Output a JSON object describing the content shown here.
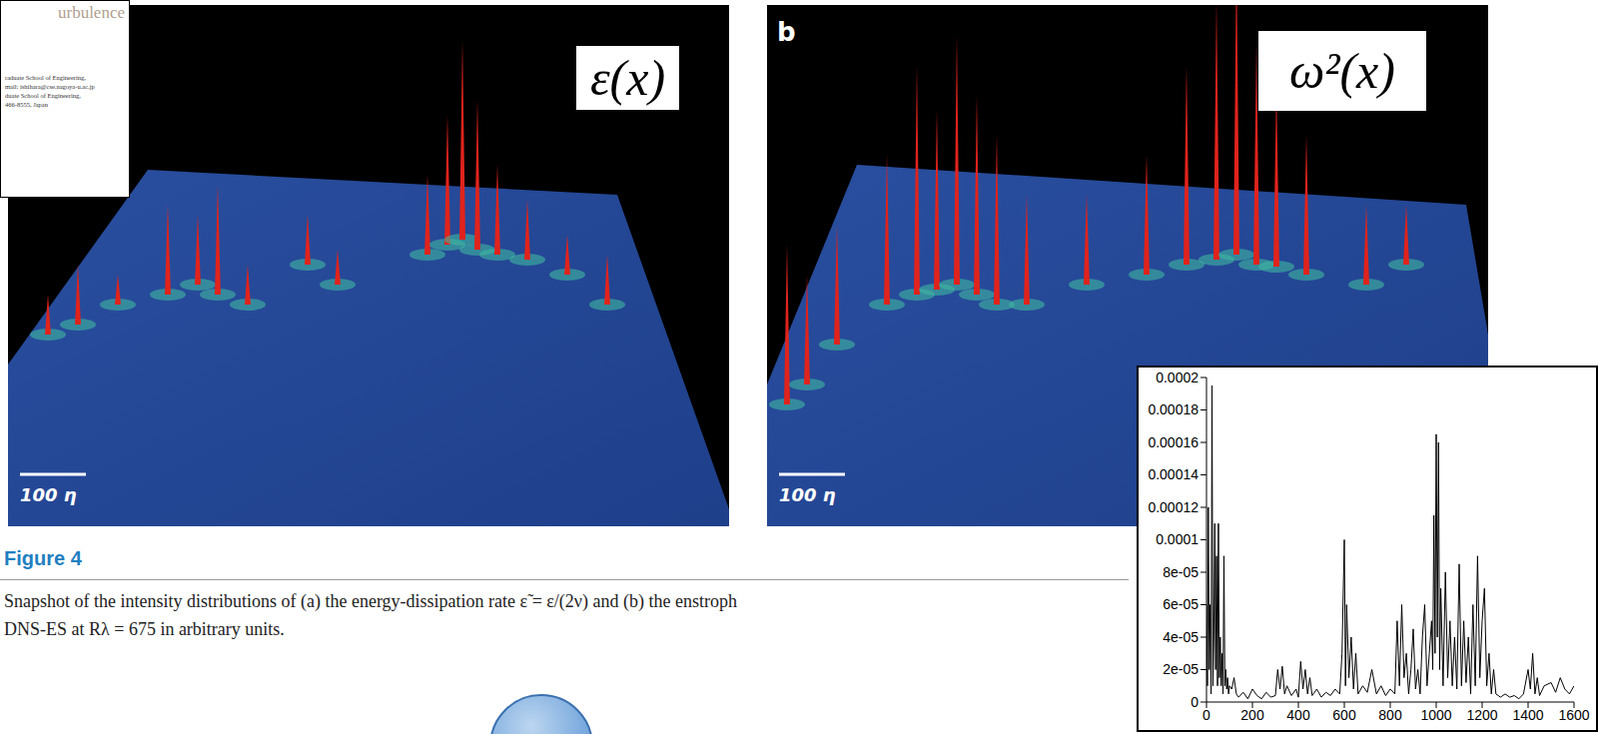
{
  "paper_header": {
    "lines": [
      "urbulence",
      "raduate School of Engineering,",
      "mail: ishihara@cse.nagoya-u.ac.jp",
      "duate School of Engineering,",
      "466-8555, Japan"
    ]
  },
  "figure": {
    "panels": [
      {
        "label": "ε(x)",
        "scale_bar": "100 η"
      },
      {
        "letter": "b",
        "label": "ω²(x)",
        "scale_bar": "100 η"
      }
    ],
    "caption_title": "Figure 4",
    "caption": [
      "Snapshot of the intensity distributions of (a) the energy-dissipation rate ε̃ = ε/(2ν) and (b) the enstroph",
      "DNS-ES at Rλ = 675 in arbitrary units."
    ]
  },
  "chart_data": {
    "type": "line",
    "color": "#000000",
    "grid": false,
    "xlim": [
      0,
      1600
    ],
    "xticks": [
      0,
      200,
      400,
      600,
      800,
      1000,
      1200,
      1400,
      1600
    ],
    "ylim": [
      0,
      0.0002
    ],
    "yticks": [
      0,
      {
        "value": 2e-05,
        "label": "2e-05"
      },
      {
        "value": 4e-05,
        "label": "4e-05"
      },
      {
        "value": 6e-05,
        "label": "6e-05"
      },
      {
        "value": 8e-05,
        "label": "8e-05"
      },
      0.0001,
      0.00012,
      0.00014,
      0.00016,
      0.00018,
      0.0002
    ],
    "x": [
      0,
      4,
      8,
      12,
      16,
      20,
      24,
      28,
      32,
      36,
      40,
      44,
      48,
      52,
      56,
      60,
      64,
      68,
      72,
      76,
      80,
      84,
      88,
      92,
      96,
      100,
      110,
      120,
      130,
      140,
      160,
      180,
      200,
      220,
      240,
      260,
      280,
      300,
      310,
      320,
      330,
      340,
      350,
      370,
      390,
      400,
      410,
      420,
      430,
      440,
      450,
      460,
      480,
      500,
      520,
      540,
      560,
      580,
      590,
      600,
      605,
      610,
      620,
      630,
      640,
      650,
      660,
      680,
      700,
      720,
      740,
      760,
      780,
      800,
      820,
      830,
      840,
      850,
      860,
      870,
      880,
      890,
      900,
      910,
      920,
      930,
      940,
      950,
      960,
      970,
      980,
      985,
      990,
      995,
      1000,
      1005,
      1010,
      1015,
      1020,
      1030,
      1040,
      1050,
      1060,
      1070,
      1080,
      1090,
      1100,
      1110,
      1120,
      1130,
      1140,
      1150,
      1160,
      1170,
      1180,
      1190,
      1200,
      1210,
      1220,
      1230,
      1240,
      1250,
      1260,
      1280,
      1300,
      1320,
      1340,
      1360,
      1380,
      1400,
      1410,
      1420,
      1430,
      1440,
      1450,
      1470,
      1500,
      1520,
      1540,
      1560,
      1580,
      1600
    ],
    "values": [
      6e-05,
      1e-05,
      0.00012,
      2e-05,
      6e-05,
      5e-06,
      0.000195,
      1e-05,
      4e-05,
      0.00011,
      2e-05,
      9e-05,
      1e-05,
      0.00011,
      1.5e-05,
      4e-05,
      1e-05,
      3e-05,
      5e-06,
      9e-05,
      1e-05,
      2e-05,
      8e-06,
      1.5e-05,
      5e-06,
      1e-05,
      8e-06,
      1.5e-05,
      5e-06,
      3e-06,
      6e-06,
      2e-06,
      8e-06,
      4e-06,
      2e-06,
      6e-06,
      3e-06,
      4e-06,
      2e-05,
      8e-06,
      2.2e-05,
      5e-06,
      1e-05,
      4e-06,
      8e-06,
      3e-06,
      2.5e-05,
      8e-06,
      2e-05,
      5e-06,
      1.5e-05,
      4e-06,
      8e-06,
      3e-06,
      6e-06,
      4e-06,
      8e-06,
      5e-06,
      3e-05,
      0.0001,
      1e-05,
      6e-05,
      1.5e-05,
      4e-05,
      8e-06,
      3e-05,
      5e-06,
      1e-05,
      6e-06,
      2e-05,
      5e-06,
      1e-05,
      4e-06,
      8e-06,
      5e-06,
      5e-05,
      1e-05,
      6e-05,
      1.5e-05,
      3e-05,
      5e-06,
      2e-05,
      4.5e-05,
      8e-06,
      2e-05,
      5e-06,
      4e-05,
      6e-05,
      1e-05,
      3e-05,
      5e-05,
      2e-05,
      0.000115,
      3e-05,
      0.000165,
      4e-05,
      0.00016,
      2e-05,
      7e-05,
      1e-05,
      8e-05,
      1.5e-05,
      5e-05,
      1e-05,
      4e-05,
      8e-06,
      8.5e-05,
      1e-05,
      5e-05,
      1.2e-05,
      4e-05,
      5e-06,
      6e-05,
      1e-05,
      9e-05,
      1.5e-05,
      5e-05,
      7e-05,
      1e-05,
      3e-05,
      5e-06,
      2e-05,
      5e-06,
      3e-06,
      5e-06,
      3e-06,
      4e-06,
      2e-06,
      5e-06,
      2e-05,
      8e-06,
      3e-05,
      5e-06,
      1.5e-05,
      4e-06,
      1e-05,
      1.2e-05,
      6e-06,
      1.5e-05,
      8e-06,
      5e-06,
      1e-05
    ]
  }
}
